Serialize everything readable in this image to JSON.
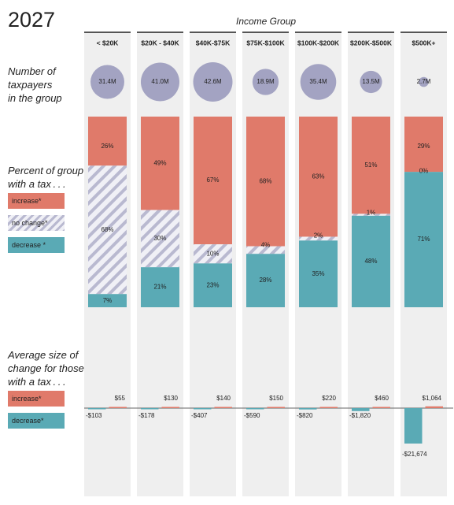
{
  "title": "2027",
  "group_axis_label": "Income Group",
  "side_labels": {
    "taxpayers": [
      "Number of",
      "taxpayers",
      "in the group"
    ],
    "percent": [
      "Percent of group",
      "with a tax . . ."
    ],
    "average": [
      "Average size of",
      "change for those",
      "with a tax . . ."
    ]
  },
  "legend": {
    "increase": "increase*",
    "no_change": "no change*",
    "decrease": "decrease *",
    "increase2": "increase*",
    "decrease2": "decrease*"
  },
  "colors": {
    "increase": "#e07a6a",
    "decrease": "#5aaab5",
    "no_change_stripe": "#b9b9d0",
    "no_change_bg": "#f0f0f6",
    "circle": "#a3a3c2",
    "column_bg": "#efefef"
  },
  "chart_data": [
    {
      "type": "bubble",
      "categories": [
        "< $20K",
        "$20K - $40K",
        "$40K-$75K",
        "$75K-$100K",
        "$100K-$200K",
        "$200K-$500K",
        "$500K+"
      ],
      "values": [
        31.4,
        41.0,
        42.6,
        18.9,
        35.4,
        13.5,
        2.7
      ],
      "labels": [
        "31.4M",
        "41.0M",
        "42.6M",
        "18.9M",
        "35.4M",
        "13.5M",
        "2.7M"
      ],
      "unit": "million taxpayers"
    },
    {
      "type": "bar",
      "stacked": true,
      "categories": [
        "< $20K",
        "$20K - $40K",
        "$40K-$75K",
        "$75K-$100K",
        "$100K-$200K",
        "$200K-$500K",
        "$500K+"
      ],
      "series": [
        {
          "name": "increase*",
          "values": [
            26,
            49,
            67,
            68,
            63,
            51,
            29
          ]
        },
        {
          "name": "no change*",
          "values": [
            68,
            30,
            10,
            4,
            2,
            1,
            0
          ]
        },
        {
          "name": "decrease *",
          "values": [
            7,
            21,
            23,
            28,
            35,
            48,
            71
          ]
        }
      ],
      "ylim": [
        0,
        100
      ],
      "unit": "%"
    },
    {
      "type": "bar",
      "categories": [
        "< $20K",
        "$20K - $40K",
        "$40K-$75K",
        "$75K-$100K",
        "$100K-$200K",
        "$200K-$500K",
        "$500K+"
      ],
      "series": [
        {
          "name": "increase*",
          "values": [
            55,
            130,
            140,
            150,
            220,
            460,
            1064
          ],
          "labels": [
            "$55",
            "$130",
            "$140",
            "$150",
            "$220",
            "$460",
            "$1,064"
          ]
        },
        {
          "name": "decrease*",
          "values": [
            -103,
            -178,
            -407,
            -590,
            -820,
            -1820,
            -21674
          ],
          "labels": [
            "-$103",
            "-$178",
            "-$407",
            "-$590",
            "-$820",
            "-$1,820",
            "-$21,674"
          ]
        }
      ],
      "unit": "$"
    }
  ]
}
